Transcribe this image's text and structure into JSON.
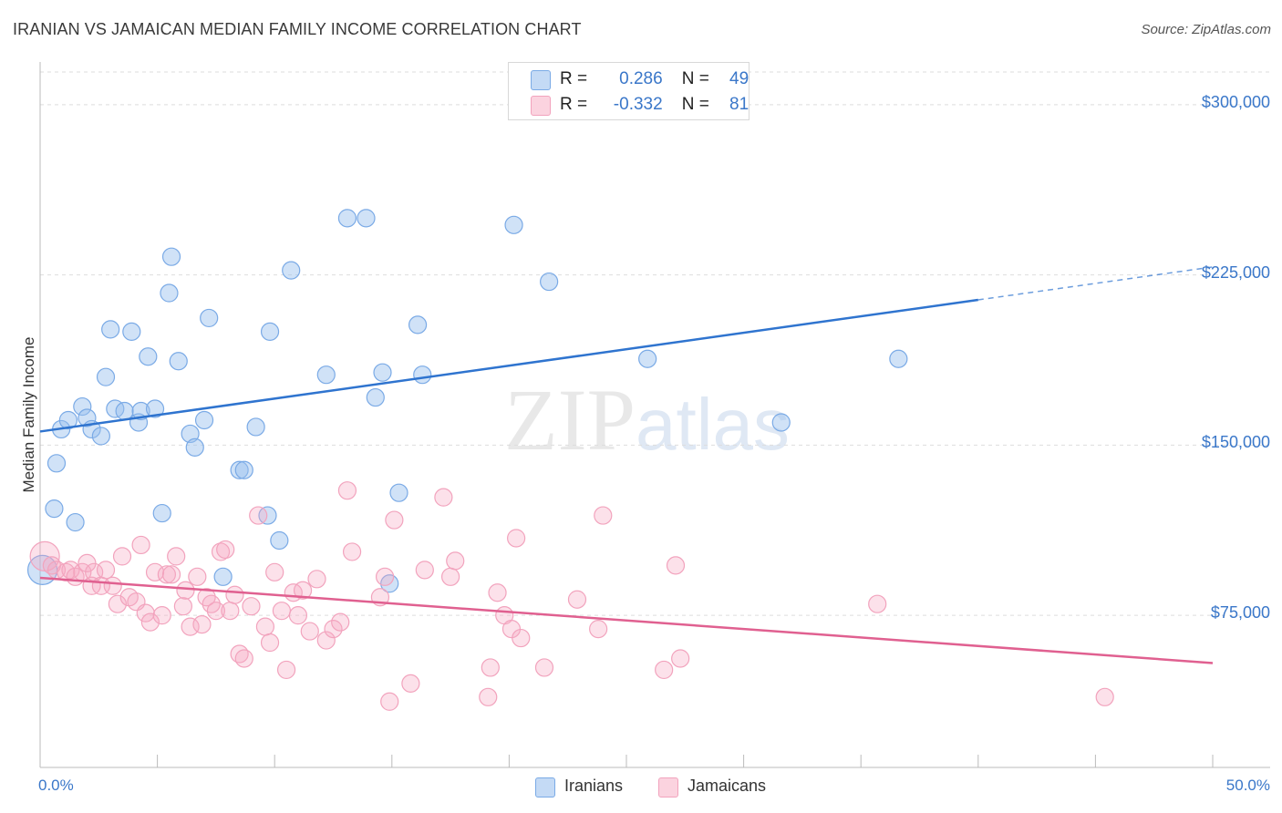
{
  "title": "IRANIAN VS JAMAICAN MEDIAN FAMILY INCOME CORRELATION CHART",
  "source": "Source: ZipAtlas.com",
  "watermark": {
    "zip": "ZIP",
    "atlas": "atlas"
  },
  "legend_top": [
    {
      "r_label": "R =",
      "r_value": "0.286",
      "n_label": "N =",
      "n_value": "49",
      "color": "#a9c8ee"
    },
    {
      "r_label": "R =",
      "r_value": "-0.332",
      "n_label": "N =",
      "n_value": "81",
      "color": "#f6b8ca"
    }
  ],
  "chart_data": {
    "type": "scatter",
    "title": "IRANIAN VS JAMAICAN MEDIAN FAMILY INCOME CORRELATION CHART",
    "xlabel": "",
    "ylabel": "Median Family Income",
    "xlim": [
      0,
      50
    ],
    "ylim": [
      8000,
      318000
    ],
    "x_tick_labels": [
      "0.0%",
      "50.0%"
    ],
    "y_ticks": [
      75000,
      150000,
      225000,
      300000
    ],
    "y_tick_labels": [
      "$75,000",
      "$150,000",
      "$225,000",
      "$300,000"
    ],
    "grid": "horizontal dashed",
    "legend_position": "top-center",
    "series": [
      {
        "name": "Iranians",
        "color": "#7aaae6",
        "line_color": "#2f74cf",
        "trend": {
          "x0": 0,
          "y0": 156000,
          "x1": 40,
          "y1": 214000,
          "x_dash_end": 50,
          "y_dash_end": 228500
        },
        "points": [
          [
            0.1,
            95000
          ],
          [
            0.6,
            122000
          ],
          [
            0.7,
            142000
          ],
          [
            0.9,
            157000
          ],
          [
            1.2,
            161000
          ],
          [
            1.5,
            116000
          ],
          [
            1.8,
            167000
          ],
          [
            2.0,
            162000
          ],
          [
            2.2,
            157000
          ],
          [
            2.6,
            154000
          ],
          [
            2.8,
            180000
          ],
          [
            3.0,
            201000
          ],
          [
            3.2,
            166000
          ],
          [
            3.6,
            165000
          ],
          [
            3.9,
            200000
          ],
          [
            4.2,
            160000
          ],
          [
            4.3,
            165000
          ],
          [
            4.6,
            189000
          ],
          [
            4.9,
            166000
          ],
          [
            5.2,
            120000
          ],
          [
            5.5,
            217000
          ],
          [
            5.6,
            233000
          ],
          [
            5.9,
            187000
          ],
          [
            6.4,
            155000
          ],
          [
            6.6,
            149000
          ],
          [
            7.0,
            161000
          ],
          [
            7.2,
            206000
          ],
          [
            7.8,
            92000
          ],
          [
            8.5,
            139000
          ],
          [
            8.7,
            139000
          ],
          [
            9.2,
            158000
          ],
          [
            9.7,
            119000
          ],
          [
            9.8,
            200000
          ],
          [
            10.2,
            108000
          ],
          [
            10.7,
            227000
          ],
          [
            12.2,
            181000
          ],
          [
            13.1,
            250000
          ],
          [
            13.9,
            250000
          ],
          [
            14.3,
            171000
          ],
          [
            14.6,
            182000
          ],
          [
            14.9,
            89000
          ],
          [
            15.3,
            129000
          ],
          [
            16.1,
            203000
          ],
          [
            16.3,
            181000
          ],
          [
            20.2,
            247000
          ],
          [
            21.7,
            222000
          ],
          [
            25.9,
            188000
          ],
          [
            31.6,
            160000
          ],
          [
            36.6,
            188000
          ]
        ]
      },
      {
        "name": "Jamaicans",
        "color": "#f2a3bd",
        "line_color": "#e06090",
        "trend": {
          "x0": 0,
          "y0": 91500,
          "x1": 50,
          "y1": 54000
        },
        "points": [
          [
            0.2,
            101000
          ],
          [
            0.5,
            97000
          ],
          [
            0.7,
            95000
          ],
          [
            1.1,
            94000
          ],
          [
            1.3,
            95000
          ],
          [
            1.5,
            92000
          ],
          [
            1.8,
            94000
          ],
          [
            2.0,
            98000
          ],
          [
            2.2,
            88000
          ],
          [
            2.3,
            94000
          ],
          [
            2.6,
            88000
          ],
          [
            2.8,
            95000
          ],
          [
            3.1,
            88000
          ],
          [
            3.3,
            80000
          ],
          [
            3.5,
            101000
          ],
          [
            3.8,
            83000
          ],
          [
            4.1,
            81000
          ],
          [
            4.3,
            106000
          ],
          [
            4.5,
            76000
          ],
          [
            4.7,
            72000
          ],
          [
            4.9,
            94000
          ],
          [
            5.2,
            75000
          ],
          [
            5.4,
            93000
          ],
          [
            5.6,
            93000
          ],
          [
            5.8,
            101000
          ],
          [
            6.1,
            79000
          ],
          [
            6.2,
            86000
          ],
          [
            6.4,
            70000
          ],
          [
            6.7,
            92000
          ],
          [
            6.9,
            71000
          ],
          [
            7.1,
            83000
          ],
          [
            7.3,
            80000
          ],
          [
            7.5,
            77000
          ],
          [
            7.7,
            103000
          ],
          [
            7.9,
            104000
          ],
          [
            8.1,
            77000
          ],
          [
            8.3,
            84000
          ],
          [
            8.5,
            58000
          ],
          [
            8.7,
            56000
          ],
          [
            9.0,
            79000
          ],
          [
            9.3,
            119000
          ],
          [
            9.6,
            70000
          ],
          [
            9.8,
            63000
          ],
          [
            10.0,
            94000
          ],
          [
            10.3,
            77000
          ],
          [
            10.5,
            51000
          ],
          [
            10.8,
            85000
          ],
          [
            11.0,
            75000
          ],
          [
            11.2,
            86000
          ],
          [
            11.5,
            68000
          ],
          [
            11.8,
            91000
          ],
          [
            12.2,
            64000
          ],
          [
            12.5,
            69000
          ],
          [
            12.8,
            72000
          ],
          [
            13.1,
            130000
          ],
          [
            13.3,
            103000
          ],
          [
            14.5,
            83000
          ],
          [
            14.7,
            92000
          ],
          [
            14.9,
            37000
          ],
          [
            15.1,
            117000
          ],
          [
            15.8,
            45000
          ],
          [
            16.4,
            95000
          ],
          [
            17.2,
            127000
          ],
          [
            17.5,
            92000
          ],
          [
            17.7,
            99000
          ],
          [
            19.1,
            39000
          ],
          [
            19.2,
            52000
          ],
          [
            19.5,
            85000
          ],
          [
            19.8,
            75000
          ],
          [
            20.1,
            69000
          ],
          [
            20.3,
            109000
          ],
          [
            20.5,
            65000
          ],
          [
            21.5,
            52000
          ],
          [
            22.9,
            82000
          ],
          [
            23.8,
            69000
          ],
          [
            24.0,
            119000
          ],
          [
            26.6,
            51000
          ],
          [
            27.1,
            97000
          ],
          [
            27.3,
            56000
          ],
          [
            35.7,
            80000
          ],
          [
            45.4,
            39000
          ]
        ]
      }
    ]
  }
}
